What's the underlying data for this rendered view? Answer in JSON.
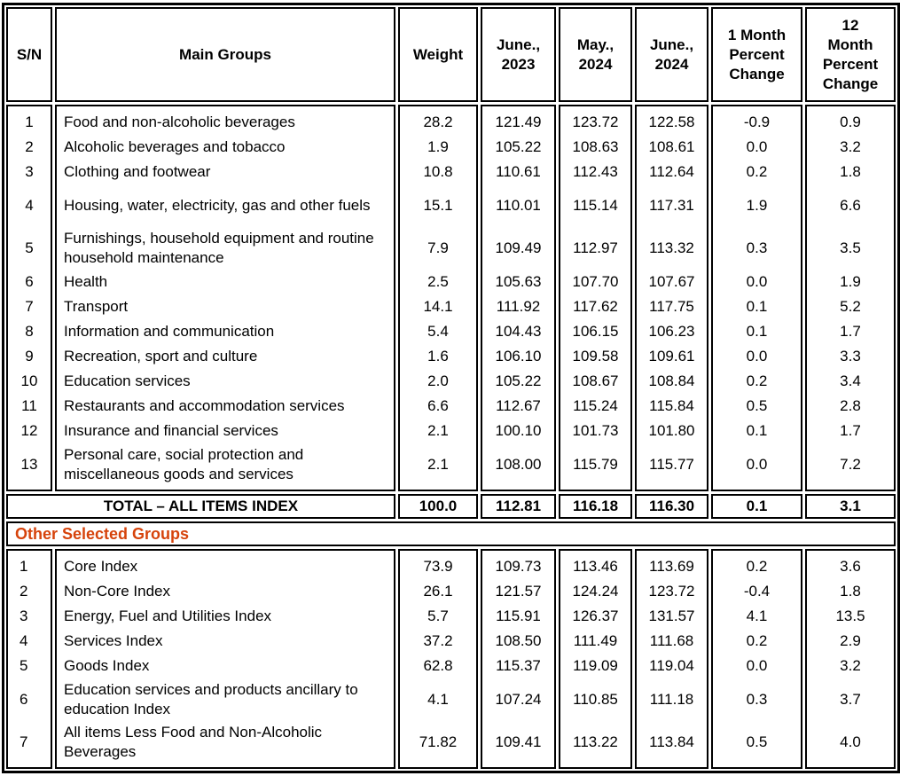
{
  "header": {
    "columns": [
      "S/N",
      "Main Groups",
      "Weight",
      "June.,\n2023",
      "May.,\n2024",
      "June.,\n2024",
      "1 Month\nPercent\nChange",
      "12\nMonth\nPercent\nChange"
    ]
  },
  "main_table": {
    "rows": [
      {
        "sn": "1",
        "name": "Food and non-alcoholic beverages",
        "weight": "28.2",
        "jun_2023": "121.49",
        "may_2024": "123.72",
        "jun_2024": "122.58",
        "chg_1m": "-0.9",
        "chg_12m": "0.9"
      },
      {
        "sn": "2",
        "name": "Alcoholic beverages and tobacco",
        "weight": "1.9",
        "jun_2023": "105.22",
        "may_2024": "108.63",
        "jun_2024": "108.61",
        "chg_1m": "0.0",
        "chg_12m": "3.2"
      },
      {
        "sn": "3",
        "name": "Clothing and footwear",
        "weight": "10.8",
        "jun_2023": "110.61",
        "may_2024": "112.43",
        "jun_2024": "112.64",
        "chg_1m": "0.2",
        "chg_12m": "1.8"
      },
      {
        "sn": "4",
        "name": "Housing, water, electricity, gas and other fuels",
        "weight": "15.1",
        "jun_2023": "110.01",
        "may_2024": "115.14",
        "jun_2024": "117.31",
        "chg_1m": "1.9",
        "chg_12m": "6.6"
      },
      {
        "sn": "5",
        "name": "Furnishings, household equipment and routine household maintenance",
        "weight": "7.9",
        "jun_2023": "109.49",
        "may_2024": "112.97",
        "jun_2024": "113.32",
        "chg_1m": "0.3",
        "chg_12m": "3.5"
      },
      {
        "sn": "6",
        "name": "Health",
        "weight": "2.5",
        "jun_2023": "105.63",
        "may_2024": "107.70",
        "jun_2024": "107.67",
        "chg_1m": "0.0",
        "chg_12m": "1.9"
      },
      {
        "sn": "7",
        "name": "Transport",
        "weight": "14.1",
        "jun_2023": "111.92",
        "may_2024": "117.62",
        "jun_2024": "117.75",
        "chg_1m": "0.1",
        "chg_12m": "5.2"
      },
      {
        "sn": "8",
        "name": "Information and communication",
        "weight": "5.4",
        "jun_2023": "104.43",
        "may_2024": "106.15",
        "jun_2024": "106.23",
        "chg_1m": "0.1",
        "chg_12m": "1.7"
      },
      {
        "sn": "9",
        "name": "Recreation, sport and culture",
        "weight": "1.6",
        "jun_2023": "106.10",
        "may_2024": "109.58",
        "jun_2024": "109.61",
        "chg_1m": "0.0",
        "chg_12m": "3.3"
      },
      {
        "sn": "10",
        "name": "Education services",
        "weight": "2.0",
        "jun_2023": "105.22",
        "may_2024": "108.67",
        "jun_2024": "108.84",
        "chg_1m": "0.2",
        "chg_12m": "3.4"
      },
      {
        "sn": "11",
        "name": "Restaurants and accommodation services",
        "weight": "6.6",
        "jun_2023": "112.67",
        "may_2024": "115.24",
        "jun_2024": "115.84",
        "chg_1m": "0.5",
        "chg_12m": "2.8"
      },
      {
        "sn": "12",
        "name": "Insurance and financial services",
        "weight": "2.1",
        "jun_2023": "100.10",
        "may_2024": "101.73",
        "jun_2024": "101.80",
        "chg_1m": "0.1",
        "chg_12m": "1.7"
      },
      {
        "sn": "13",
        "name": "Personal care, social protection and miscellaneous goods and services",
        "weight": "2.1",
        "jun_2023": "108.00",
        "may_2024": "115.79",
        "jun_2024": "115.77",
        "chg_1m": "0.0",
        "chg_12m": "7.2"
      }
    ],
    "total": {
      "label": "TOTAL – ALL ITEMS INDEX",
      "weight": "100.0",
      "jun_2023": "112.81",
      "may_2024": "116.18",
      "jun_2024": "116.30",
      "chg_1m": "0.1",
      "chg_12m": "3.1"
    }
  },
  "other_groups": {
    "section_label": "Other Selected Groups",
    "rows": [
      {
        "sn": "1",
        "name": "Core Index",
        "weight": "73.9",
        "jun_2023": "109.73",
        "may_2024": "113.46",
        "jun_2024": "113.69",
        "chg_1m": "0.2",
        "chg_12m": "3.6"
      },
      {
        "sn": "2",
        "name": "Non-Core Index",
        "weight": "26.1",
        "jun_2023": "121.57",
        "may_2024": "124.24",
        "jun_2024": "123.72",
        "chg_1m": "-0.4",
        "chg_12m": "1.8"
      },
      {
        "sn": "3",
        "name": "Energy, Fuel and Utilities Index",
        "weight": "5.7",
        "jun_2023": "115.91",
        "may_2024": "126.37",
        "jun_2024": "131.57",
        "chg_1m": "4.1",
        "chg_12m": "13.5"
      },
      {
        "sn": "4",
        "name": "Services Index",
        "weight": "37.2",
        "jun_2023": "108.50",
        "may_2024": "111.49",
        "jun_2024": "111.68",
        "chg_1m": "0.2",
        "chg_12m": "2.9"
      },
      {
        "sn": "5",
        "name": "Goods Index",
        "weight": "62.8",
        "jun_2023": "115.37",
        "may_2024": "119.09",
        "jun_2024": "119.04",
        "chg_1m": "0.0",
        "chg_12m": "3.2"
      },
      {
        "sn": "6",
        "name": "Education services and products ancillary to education Index",
        "weight": "4.1",
        "jun_2023": "107.24",
        "may_2024": "110.85",
        "jun_2024": "111.18",
        "chg_1m": "0.3",
        "chg_12m": "3.7"
      },
      {
        "sn": "7",
        "name": "All items Less Food and Non-Alcoholic Beverages",
        "weight": "71.82",
        "jun_2023": "109.41",
        "may_2024": "113.22",
        "jun_2024": "113.84",
        "chg_1m": "0.5",
        "chg_12m": "4.0"
      }
    ]
  },
  "colors": {
    "accent": "#D6430B",
    "border": "#000000",
    "text": "#000000",
    "background": "#FFFFFF"
  }
}
